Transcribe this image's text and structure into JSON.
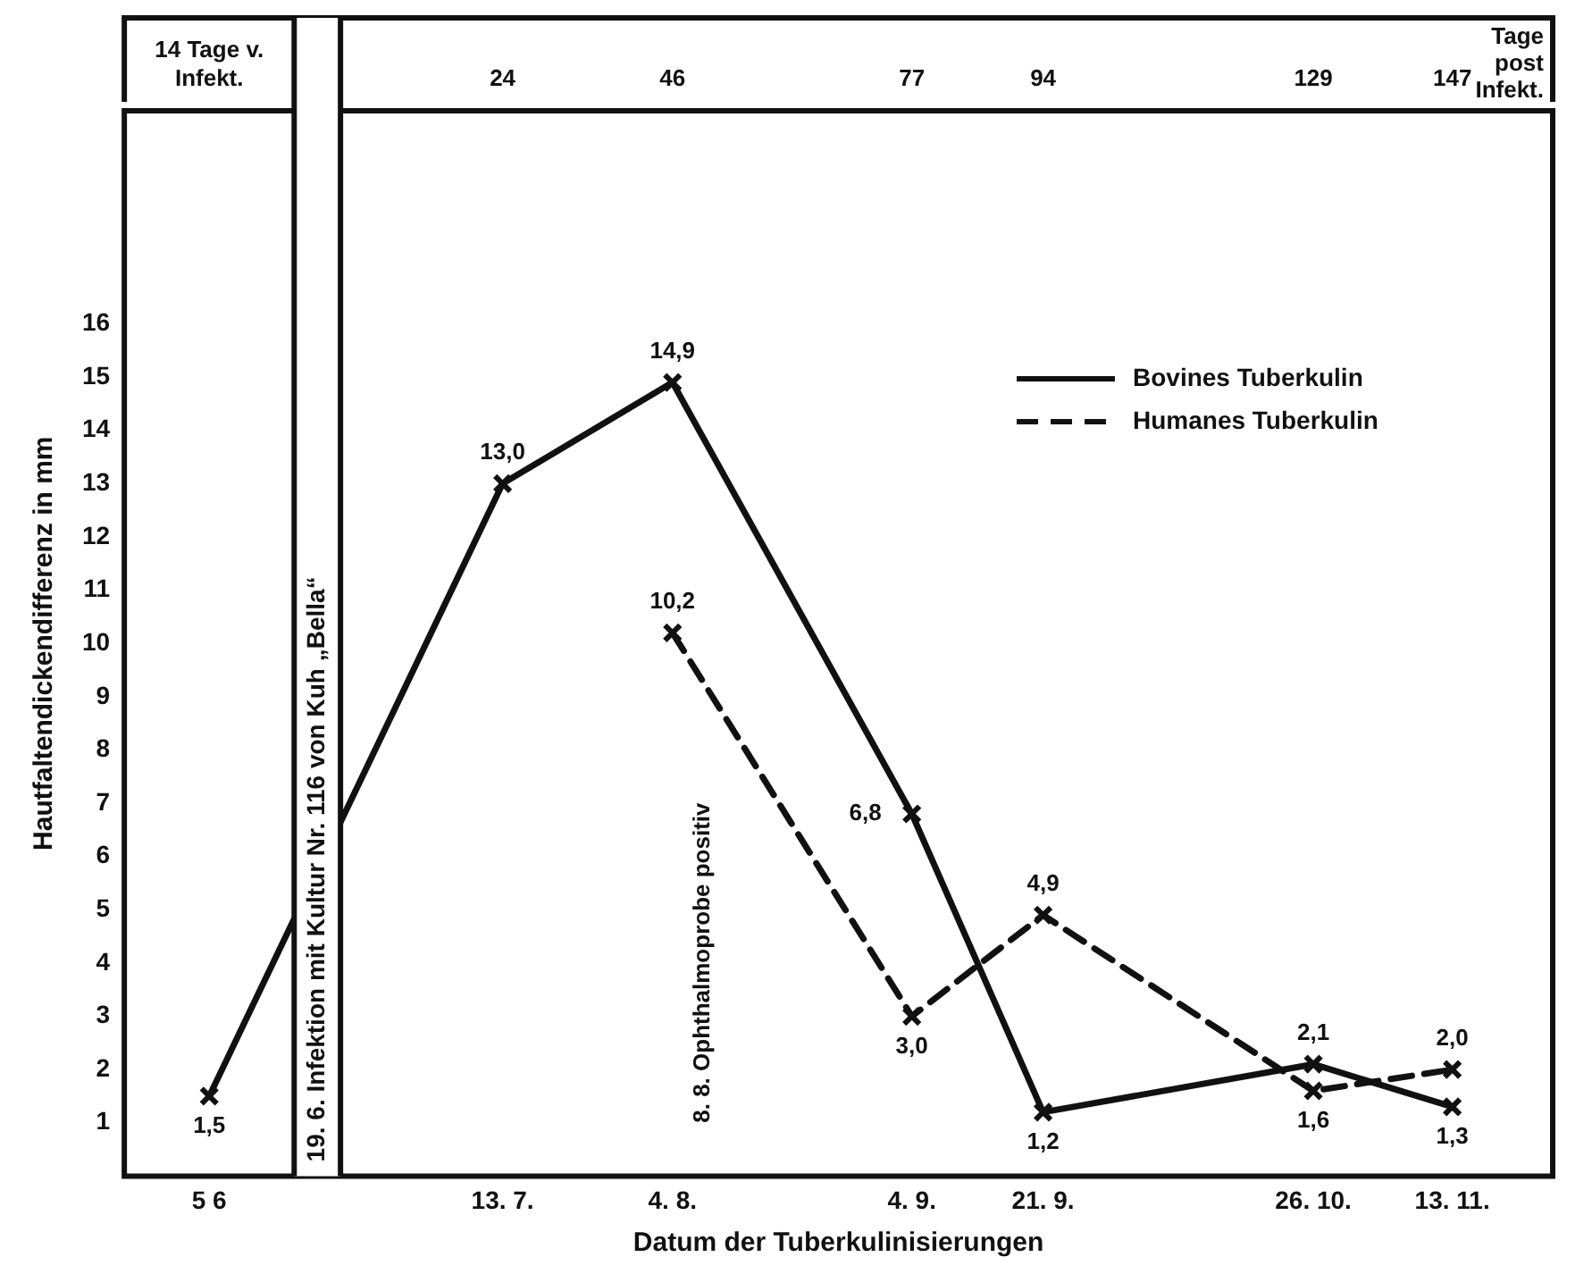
{
  "chart_data": {
    "type": "line",
    "xlabel": "Datum der Tuberkulinisierungen",
    "ylabel": "Hautfaltendickendifferenz in mm",
    "x2label": "Tage post Infekt.",
    "x": [
      "--06-05",
      "--07-13",
      "--08-04",
      "--09-04",
      "--09-21",
      "--10-26",
      "--11-13"
    ],
    "series": [
      {
        "name": "Bovines Tuberkulin",
        "color": "#111111",
        "line_style": "solid",
        "values": [
          1.5,
          13.0,
          14.9,
          6.8,
          1.2,
          2.1,
          1.3
        ],
        "value_labels": [
          "1,5",
          "13,0",
          "14,9",
          "6,8",
          "1,2",
          "2,1",
          "1,3"
        ]
      },
      {
        "name": "Humanes Tuberkulin",
        "color": "#111111",
        "line_style": "dashed",
        "values": [
          null,
          null,
          10.2,
          3.0,
          4.9,
          1.6,
          2.0
        ],
        "value_labels": [
          null,
          null,
          "10,2",
          "3,0",
          "4,9",
          "1,6",
          "2,0"
        ]
      }
    ],
    "xlim": [
      "--05-25",
      "--11-26"
    ],
    "xticks": [
      {
        "value": "--06-05",
        "label": "5 6"
      },
      {
        "value": "--07-13",
        "label": "13. 7."
      },
      {
        "value": "--08-04",
        "label": "4. 8."
      },
      {
        "value": "--09-04",
        "label": "4. 9."
      },
      {
        "value": "--09-21",
        "label": "21. 9."
      },
      {
        "value": "--10-26",
        "label": "26. 10."
      },
      {
        "value": "--11-13",
        "label": "13. 11."
      }
    ],
    "x2lim": [
      -25,
      160
    ],
    "x2ticks": [
      {
        "value": -14,
        "label": "14 Tage v. Infekt."
      },
      24,
      46,
      77,
      94,
      129,
      147
    ],
    "ylim": [
      0,
      20
    ],
    "yticks": [
      1,
      2,
      3,
      4,
      5,
      6,
      7,
      8,
      9,
      10,
      11,
      12,
      13,
      14,
      15,
      16
    ],
    "bands": [
      {
        "axis": "x",
        "from": "--06-16",
        "to": "--06-22",
        "label": "19. 6. Infektion mit Kultur Nr. 116 von Kuh „Bella“",
        "color": "#ffffff"
      }
    ],
    "ref_lines": [
      {
        "axis": "x",
        "value": "--06-16",
        "color": "#111111"
      },
      {
        "axis": "x",
        "value": "--06-22",
        "color": "#111111"
      }
    ],
    "grid": false,
    "legend": "top right",
    "marker": "cross",
    "annotations": [
      "8. 8. Ophthalmoprobe positiv"
    ]
  }
}
